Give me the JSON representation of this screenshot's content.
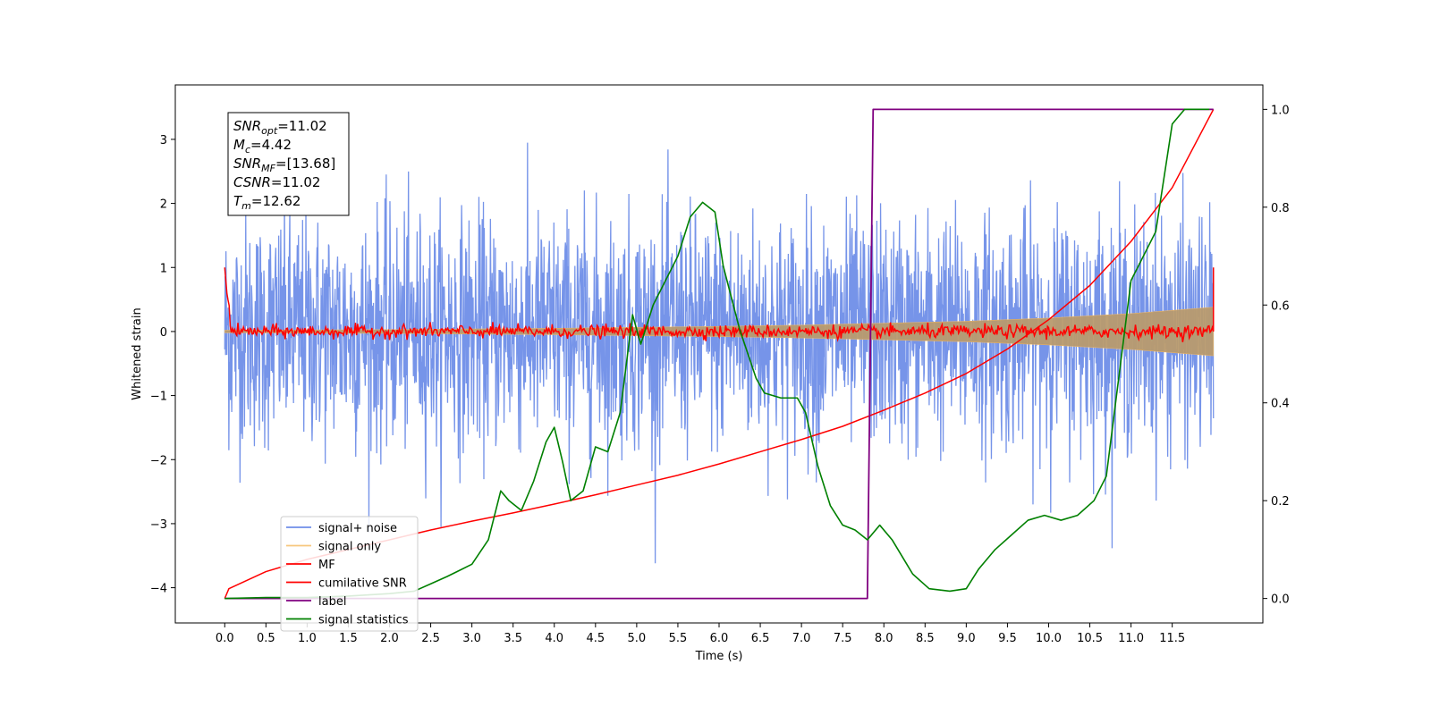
{
  "chart_data": {
    "type": "line",
    "xlabel": "Time (s)",
    "ylabel": "Whitened strain",
    "xlim": [
      -0.6,
      12.6
    ],
    "ylim": [
      -4.55,
      3.85
    ],
    "y2lim": [
      -0.05,
      1.05
    ],
    "x_ticks": [
      0.0,
      0.5,
      1.0,
      1.5,
      2.0,
      2.5,
      3.0,
      3.5,
      4.0,
      4.5,
      5.0,
      5.5,
      6.0,
      6.5,
      7.0,
      7.5,
      8.0,
      8.5,
      9.0,
      9.5,
      10.0,
      10.5,
      11.0,
      11.5
    ],
    "x_tick_labels": [
      "0.0",
      "0.5",
      "1.0",
      "1.5",
      "2.0",
      "2.5",
      "3.0",
      "3.5",
      "4.0",
      "4.5",
      "5.0",
      "5.5",
      "6.0",
      "6.5",
      "7.0",
      "7.5",
      "8.0",
      "8.5",
      "9.0",
      "9.5",
      "10.0",
      "10.5",
      "11.0",
      "11.5"
    ],
    "y_ticks": [
      -4,
      -3,
      -2,
      -1,
      0,
      1,
      2,
      3
    ],
    "y_tick_labels": [
      "−4",
      "−3",
      "−2",
      "−1",
      "0",
      "1",
      "2",
      "3"
    ],
    "y2_ticks": [
      0.0,
      0.2,
      0.4,
      0.6,
      0.8,
      1.0
    ],
    "y2_tick_labels": [
      "0.0",
      "0.2",
      "0.4",
      "0.6",
      "0.8",
      "1.0"
    ],
    "grid": false,
    "legend_position": "lower-left",
    "series": [
      {
        "name": "signal+ noise",
        "color": "#6f8ee8",
        "axis": "left",
        "kind": "noise",
        "t_range": [
          0.0,
          12.0
        ],
        "typical_std": 0.9,
        "min": -4.15,
        "max": 3.5
      },
      {
        "name": "signal only",
        "color": "#f5b860",
        "axis": "left",
        "kind": "envelope",
        "t": [
          0.0,
          2.0,
          4.0,
          6.0,
          7.0,
          8.0,
          9.0,
          10.0,
          11.0,
          12.0
        ],
        "amplitude": [
          0.02,
          0.03,
          0.05,
          0.08,
          0.1,
          0.13,
          0.16,
          0.21,
          0.28,
          0.38
        ]
      },
      {
        "name": "MF",
        "color": "#ff0000",
        "axis": "left",
        "kind": "noise",
        "t_range": [
          0.0,
          12.0
        ],
        "typical_std": 0.05,
        "start_value": 1.0,
        "end_value": 1.0
      },
      {
        "name": "cumilative SNR",
        "color": "#ff0000",
        "axis": "right",
        "t": [
          0.0,
          0.05,
          0.5,
          1.0,
          1.5,
          2.0,
          2.5,
          3.0,
          3.5,
          4.0,
          4.5,
          5.0,
          5.5,
          6.0,
          6.5,
          7.0,
          7.5,
          8.0,
          8.5,
          9.0,
          9.5,
          10.0,
          10.5,
          11.0,
          11.5,
          12.0
        ],
        "values": [
          0.0,
          0.02,
          0.055,
          0.08,
          0.1,
          0.12,
          0.14,
          0.158,
          0.175,
          0.193,
          0.212,
          0.232,
          0.252,
          0.275,
          0.3,
          0.325,
          0.352,
          0.385,
          0.42,
          0.46,
          0.51,
          0.57,
          0.64,
          0.73,
          0.84,
          1.0
        ]
      },
      {
        "name": "label",
        "color": "#800080",
        "axis": "right",
        "t": [
          0.0,
          7.8,
          7.87,
          12.0
        ],
        "values": [
          0.0,
          0.0,
          1.0,
          1.0
        ]
      },
      {
        "name": "signal statistics",
        "color": "#008000",
        "axis": "right",
        "t": [
          0.0,
          0.5,
          1.0,
          1.5,
          2.0,
          2.3,
          2.5,
          2.7,
          3.0,
          3.2,
          3.35,
          3.45,
          3.6,
          3.75,
          3.9,
          4.0,
          4.1,
          4.2,
          4.35,
          4.5,
          4.65,
          4.8,
          4.95,
          5.05,
          5.2,
          5.35,
          5.5,
          5.65,
          5.8,
          5.95,
          6.05,
          6.25,
          6.45,
          6.55,
          6.75,
          6.95,
          7.05,
          7.2,
          7.35,
          7.5,
          7.65,
          7.8,
          7.95,
          8.1,
          8.35,
          8.55,
          8.8,
          9.0,
          9.15,
          9.35,
          9.55,
          9.75,
          9.95,
          10.15,
          10.35,
          10.55,
          10.7,
          10.85,
          11.0,
          11.15,
          11.3,
          11.5,
          11.65,
          11.8,
          11.95
        ],
        "values": [
          0.0,
          0.002,
          0.002,
          0.005,
          0.01,
          0.015,
          0.03,
          0.045,
          0.07,
          0.12,
          0.22,
          0.2,
          0.18,
          0.24,
          0.32,
          0.35,
          0.28,
          0.2,
          0.22,
          0.31,
          0.3,
          0.38,
          0.58,
          0.52,
          0.6,
          0.65,
          0.7,
          0.78,
          0.81,
          0.79,
          0.68,
          0.55,
          0.45,
          0.42,
          0.41,
          0.41,
          0.38,
          0.27,
          0.19,
          0.15,
          0.14,
          0.12,
          0.15,
          0.12,
          0.05,
          0.02,
          0.015,
          0.02,
          0.06,
          0.1,
          0.13,
          0.16,
          0.17,
          0.16,
          0.17,
          0.2,
          0.25,
          0.45,
          0.65,
          0.7,
          0.75,
          0.97,
          1.0,
          1.0,
          1.0
        ]
      }
    ],
    "annotation_box": {
      "lines": [
        {
          "main": "SNR",
          "sub": "opt",
          "value": "=11.02"
        },
        {
          "main": "M",
          "sub": "c",
          "value": "=4.42"
        },
        {
          "main": "SNR",
          "sub": "MF",
          "value": "=[13.68]"
        },
        {
          "main": "CSNR",
          "sub": "",
          "value": "=11.02"
        },
        {
          "main": "T",
          "sub": "m",
          "value": "=12.62"
        }
      ]
    }
  }
}
